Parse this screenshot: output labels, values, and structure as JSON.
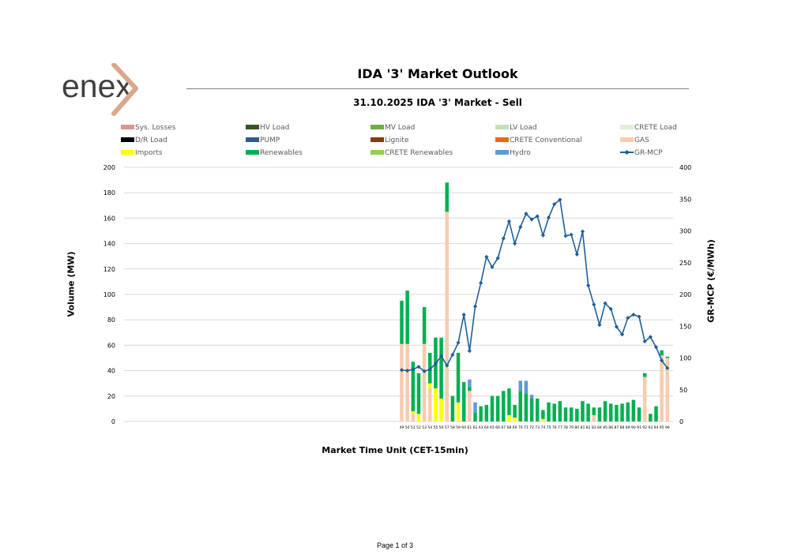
{
  "brand": {
    "logo_text": "enex",
    "accent": "#d9a88a"
  },
  "header": {
    "title": "IDA '3' Market Outlook",
    "subtitle": "31.10.2025  IDA '3' Market - Sell"
  },
  "footer": {
    "page": "Page 1 of 3"
  },
  "legend": [
    {
      "label": "Sys. Losses",
      "color": "#d99694",
      "kind": "bar"
    },
    {
      "label": "HV Load",
      "color": "#375623",
      "kind": "bar"
    },
    {
      "label": "MV Load",
      "color": "#70ad47",
      "kind": "bar"
    },
    {
      "label": "LV Load",
      "color": "#c5e0b4",
      "kind": "bar"
    },
    {
      "label": "CRETE Load",
      "color": "#e2efda",
      "kind": "bar"
    },
    {
      "label": "D/R Load",
      "color": "#000000",
      "kind": "bar"
    },
    {
      "label": "PUMP",
      "color": "#2e5c8a",
      "kind": "bar"
    },
    {
      "label": "Lignite",
      "color": "#843c0c",
      "kind": "bar"
    },
    {
      "label": "CRETE Conventional",
      "color": "#e46c0a",
      "kind": "bar"
    },
    {
      "label": "GAS",
      "color": "#f8cbad",
      "kind": "bar"
    },
    {
      "label": "Imports",
      "color": "#ffff00",
      "kind": "bar"
    },
    {
      "label": "Renewables",
      "color": "#00b050",
      "kind": "bar"
    },
    {
      "label": "CRETE Renewables",
      "color": "#92d050",
      "kind": "bar"
    },
    {
      "label": "Hydro",
      "color": "#5b9bd5",
      "kind": "bar"
    },
    {
      "label": "GR-MCP",
      "color": "#1f5f9a",
      "kind": "line"
    }
  ],
  "chart_data": {
    "type": "bar",
    "stacked": true,
    "title": "31.10.2025  IDA '3' Market - Sell",
    "xlabel": "Market Time Unit (CET-15min)",
    "ylabel": "Volume (MW)",
    "y2label": "GR-MCP (€/MWh)",
    "ylim": [
      0,
      200
    ],
    "y2lim": [
      0,
      400
    ],
    "yticks": [
      0,
      20,
      40,
      60,
      80,
      100,
      120,
      140,
      160,
      180,
      200
    ],
    "y2ticks": [
      0,
      50,
      100,
      150,
      200,
      250,
      300,
      350,
      400
    ],
    "grid": true,
    "legend_position": "top",
    "categories": [
      "49",
      "50",
      "51",
      "52",
      "53",
      "54",
      "55",
      "56",
      "57",
      "58",
      "59",
      "60",
      "61",
      "62",
      "63",
      "64",
      "65",
      "66",
      "67",
      "68",
      "69",
      "70",
      "71",
      "72",
      "73",
      "74",
      "75",
      "76",
      "77",
      "78",
      "79",
      "80",
      "81",
      "82",
      "83",
      "84",
      "85",
      "86",
      "87",
      "88",
      "89",
      "90",
      "91",
      "92",
      "93",
      "94",
      "95",
      "96"
    ],
    "series": [
      {
        "name": "Sys. Losses",
        "axis": "y",
        "values": [
          0,
          0,
          0,
          0,
          0,
          0,
          0,
          0,
          0,
          0,
          0,
          0,
          0,
          0,
          0,
          0,
          0,
          0,
          0,
          0,
          0,
          0,
          0,
          0,
          0,
          0,
          0,
          0,
          0,
          0,
          0,
          0,
          0,
          0,
          0,
          0,
          0,
          0,
          0,
          0,
          0,
          0,
          0,
          0,
          0,
          0,
          0,
          0
        ]
      },
      {
        "name": "GAS",
        "axis": "y",
        "values": [
          61,
          61,
          6,
          0,
          61,
          26,
          0,
          0,
          165,
          0,
          0,
          0,
          24,
          0,
          0,
          0,
          0,
          0,
          0,
          0,
          0,
          0,
          0,
          0,
          0,
          0,
          0,
          0,
          0,
          0,
          0,
          0,
          0,
          0,
          5,
          0,
          0,
          0,
          0,
          0,
          0,
          0,
          0,
          35,
          0,
          0,
          52,
          50
        ]
      },
      {
        "name": "Imports",
        "axis": "y",
        "values": [
          0,
          0,
          2,
          6,
          0,
          4,
          26,
          18,
          0,
          0,
          15,
          0,
          0,
          0,
          0,
          0,
          0,
          0,
          0,
          5,
          3,
          0,
          0,
          0,
          0,
          2,
          0,
          0,
          0,
          0,
          0,
          0,
          0,
          0,
          0,
          0,
          0,
          0,
          0,
          0,
          0,
          0,
          0,
          0,
          0,
          0,
          0,
          0
        ]
      },
      {
        "name": "Renewables",
        "axis": "y",
        "values": [
          34,
          42,
          39,
          32,
          29,
          24,
          40,
          48,
          23,
          20,
          39,
          31,
          3,
          7,
          12,
          13,
          20,
          20,
          24,
          21,
          10,
          24,
          22,
          18,
          18,
          7,
          15,
          14,
          16,
          11,
          11,
          10,
          16,
          14,
          6,
          11,
          16,
          14,
          13,
          14,
          15,
          17,
          11,
          3,
          6,
          12,
          4,
          1
        ]
      },
      {
        "name": "CRETE Renewables",
        "axis": "y",
        "values": [
          0,
          0,
          0,
          0,
          0,
          0,
          0,
          0,
          0,
          0,
          0,
          0,
          0,
          0,
          0,
          0,
          0,
          0,
          0,
          0,
          0,
          0,
          0,
          0,
          0,
          0,
          0,
          0,
          0,
          0,
          0,
          0,
          0,
          0,
          0,
          0,
          0,
          0,
          0,
          0,
          0,
          0,
          0,
          0,
          0,
          0,
          0,
          0
        ]
      },
      {
        "name": "Hydro",
        "axis": "y",
        "values": [
          0,
          0,
          0,
          0,
          0,
          0,
          0,
          0,
          0,
          0,
          0,
          0,
          6,
          8,
          0,
          0,
          0,
          0,
          0,
          0,
          0,
          8,
          10,
          3,
          0,
          0,
          0,
          0,
          0,
          0,
          0,
          0,
          0,
          0,
          0,
          0,
          0,
          0,
          0,
          0,
          0,
          0,
          0,
          0,
          0,
          0,
          0,
          0
        ]
      },
      {
        "name": "GR-MCP",
        "axis": "y2",
        "type": "line",
        "values": [
          81,
          80,
          82,
          86,
          79,
          82,
          91,
          103,
          88,
          105,
          124,
          168,
          111,
          181,
          218,
          259,
          243,
          257,
          288,
          315,
          280,
          306,
          327,
          318,
          323,
          293,
          321,
          342,
          349,
          292,
          294,
          263,
          299,
          214,
          184,
          152,
          186,
          177,
          149,
          137,
          163,
          168,
          165,
          126,
          133,
          117,
          96,
          84
        ]
      }
    ]
  }
}
